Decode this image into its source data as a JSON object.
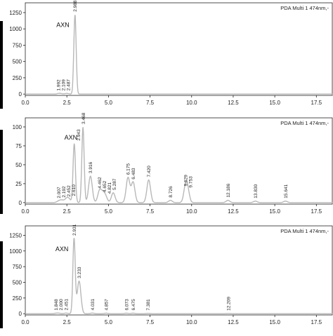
{
  "figure": {
    "side_bar_color": "#000000",
    "line_color": "#b8b8b8",
    "axis_color": "#222222"
  },
  "chart_data": [
    {
      "type": "line",
      "title": "",
      "legend": "PDA Multi 1 474nm,-",
      "xlim": [
        0,
        18.5
      ],
      "ylim": [
        -20,
        1400
      ],
      "x_ticks": [
        "0.0",
        "2.5",
        "5.0",
        "7.5",
        "10.0",
        "12.5",
        "15.0",
        "17.5"
      ],
      "y_ticks": [
        "0",
        "250",
        "500",
        "750",
        "1000",
        "1250"
      ],
      "compound_label": "AXN",
      "peaks": [
        {
          "rt": 1.992,
          "label": "1.992",
          "height": 6
        },
        {
          "rt": 2.109,
          "label": "2.109",
          "height": 8
        },
        {
          "rt": 2.487,
          "label": "2.487",
          "height": 10
        },
        {
          "rt": 2.988,
          "label": "2.988",
          "height": 1220
        }
      ]
    },
    {
      "type": "line",
      "title": "",
      "legend": "PDA Multi 1 474nm,-",
      "xlim": [
        0,
        18.5
      ],
      "ylim": [
        -2,
        112
      ],
      "x_ticks": [
        "0.0",
        "2.5",
        "5.0",
        "7.5",
        "10.0",
        "12.5",
        "15.0",
        "17.5"
      ],
      "y_ticks": [
        "0",
        "25",
        "50",
        "75",
        "100"
      ],
      "compound_label": "AXN",
      "peaks": [
        {
          "rt": 2.007,
          "label": "2.007",
          "height": 2
        },
        {
          "rt": 2.192,
          "label": "2.192",
          "height": 3
        },
        {
          "rt": 2.452,
          "label": "2.452",
          "height": 4
        },
        {
          "rt": 2.61,
          "label": "2.610",
          "height": 5
        },
        {
          "rt": 2.943,
          "label": "2.943",
          "height": 78
        },
        {
          "rt": 3.468,
          "label": "3.468",
          "height": 100
        },
        {
          "rt": 3.916,
          "label": "3.916",
          "height": 35
        },
        {
          "rt": 4.462,
          "label": "4.462",
          "height": 15
        },
        {
          "rt": 4.652,
          "label": "4.652",
          "height": 10
        },
        {
          "rt": 4.821,
          "label": "4.821",
          "height": 8
        },
        {
          "rt": 5.287,
          "label": "5.287",
          "height": 13
        },
        {
          "rt": 6.175,
          "label": "6.175",
          "height": 33
        },
        {
          "rt": 6.483,
          "label": "6.483",
          "height": 27
        },
        {
          "rt": 7.42,
          "label": "7.420",
          "height": 30
        },
        {
          "rt": 8.726,
          "label": "8.726",
          "height": 3
        },
        {
          "rt": 9.629,
          "label": "9.629",
          "height": 18
        },
        {
          "rt": 9.753,
          "label": "9.753",
          "height": 16
        },
        {
          "rt": 12.186,
          "label": "12.186",
          "height": 3
        },
        {
          "rt": 13.83,
          "label": "13.830",
          "height": 2
        },
        {
          "rt": 15.641,
          "label": "15.641",
          "height": 2
        }
      ]
    },
    {
      "type": "line",
      "title": "",
      "legend": "PDA Multi 1 474nm,-",
      "xlim": [
        0,
        18.5
      ],
      "ylim": [
        -20,
        1400
      ],
      "x_ticks": [
        "0.0",
        "2.5",
        "5.0",
        "7.5",
        "10.0",
        "12.5",
        "15.0",
        "17.5"
      ],
      "y_ticks": [
        "0",
        "250",
        "500",
        "750",
        "1000",
        "1250"
      ],
      "compound_label": "AXN",
      "peaks": [
        {
          "rt": 1.848,
          "label": "1.848",
          "height": 6
        },
        {
          "rt": 2.0,
          "label": "2.000",
          "height": 8
        },
        {
          "rt": 2.451,
          "label": "2.451",
          "height": 10
        },
        {
          "rt": 2.931,
          "label": "2.931",
          "height": 1200
        },
        {
          "rt": 3.233,
          "label": "3.233",
          "height": 520
        },
        {
          "rt": 4.031,
          "label": "4.031",
          "height": 10
        },
        {
          "rt": 4.857,
          "label": "4.857",
          "height": 8
        },
        {
          "rt": 6.073,
          "label": "6.073",
          "height": 8
        },
        {
          "rt": 6.475,
          "label": "6.475",
          "height": 8
        },
        {
          "rt": 7.381,
          "label": "7.381",
          "height": 6
        },
        {
          "rt": 12.209,
          "label": "12.209",
          "height": 4
        }
      ]
    }
  ]
}
